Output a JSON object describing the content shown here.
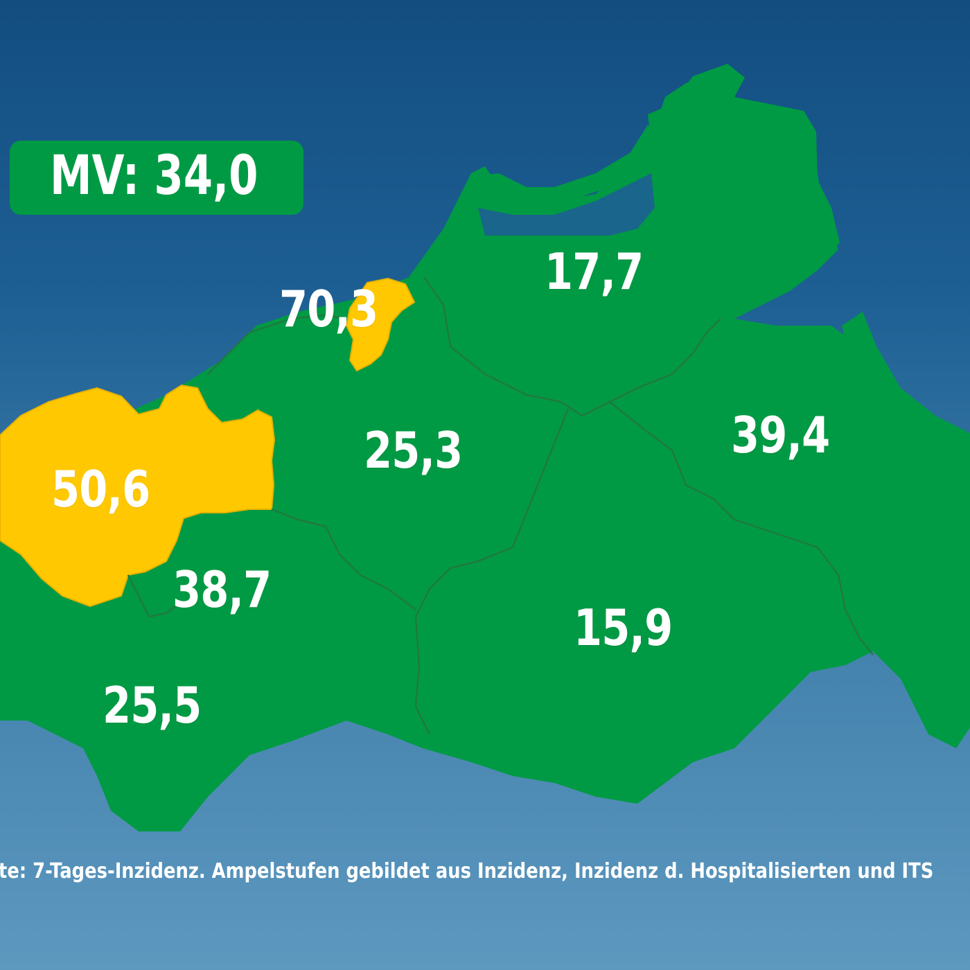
{
  "colors": {
    "green": "#009a44",
    "yellow": "#ffc800",
    "border": "#1f7a3f",
    "background": "#1d5f93"
  },
  "total": {
    "text": "MV: 34,0",
    "level": "green"
  },
  "regions": [
    {
      "id": "rostock-city",
      "value": "70,3",
      "level": "yellow"
    },
    {
      "id": "nordwestmecklenburg",
      "value": "50,6",
      "level": "yellow"
    },
    {
      "id": "vorpommern-ruegen",
      "value": "17,7",
      "level": "green"
    },
    {
      "id": "rostock-county",
      "value": "25,3",
      "level": "green"
    },
    {
      "id": "vorpommern-greifswald",
      "value": "39,4",
      "level": "green"
    },
    {
      "id": "schwerin",
      "value": "38,7",
      "level": "green"
    },
    {
      "id": "seenplatte",
      "value": "15,9",
      "level": "green"
    },
    {
      "id": "ludwigslust-parchim",
      "value": "25,5",
      "level": "green"
    }
  ],
  "footnote": "te: 7-Tages-Inzidenz. Ampelstufen gebildet aus Inzidenz, Inzidenz d. Hospitalisierten und ITS"
}
